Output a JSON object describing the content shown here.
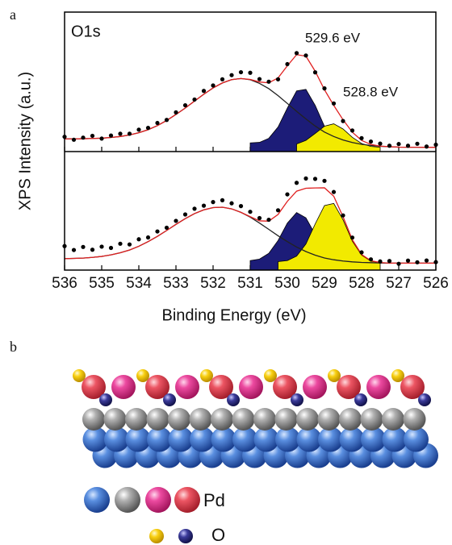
{
  "panel_labels": [
    "a",
    "b"
  ],
  "chart_data": {
    "type": "line",
    "xlabel": "Binding Energy (eV)",
    "ylabel": "XPS Intensity (a.u.)",
    "xlim": [
      536,
      526
    ],
    "xticks": [
      536,
      535,
      534,
      533,
      532,
      531,
      530,
      529,
      528,
      527,
      526
    ],
    "x": [
      536,
      535.75,
      535.5,
      535.25,
      535,
      534.75,
      534.5,
      534.25,
      534,
      533.75,
      533.5,
      533.25,
      533,
      532.75,
      532.5,
      532.25,
      532,
      531.75,
      531.5,
      531.25,
      531,
      530.75,
      530.5,
      530.25,
      530,
      529.75,
      529.5,
      529.25,
      529,
      528.75,
      528.5,
      528.25,
      528,
      527.75,
      527.5,
      527.25,
      527,
      526.75,
      526.5,
      526.25,
      526
    ],
    "panels": [
      {
        "ylim": [
          0,
          100
        ],
        "annotations": [
          "O1s",
          "529.6 eV",
          "528.8 eV"
        ],
        "series": [
          {
            "type": "area",
            "color": "#1c1c78",
            "values": [
              null,
              null,
              null,
              null,
              null,
              null,
              null,
              null,
              null,
              null,
              null,
              null,
              null,
              null,
              null,
              null,
              null,
              null,
              null,
              null,
              6.2,
              6.6,
              9.5,
              17.6,
              31.2,
              43.5,
              44.6,
              33.1,
              18.1,
              8.4,
              4.3,
              3.2,
              null,
              null,
              null,
              null,
              null,
              null,
              null,
              null,
              null
            ]
          },
          {
            "type": "area",
            "color": "#f2ea00",
            "values": [
              null,
              null,
              null,
              null,
              null,
              null,
              null,
              null,
              null,
              null,
              null,
              null,
              null,
              null,
              null,
              null,
              null,
              null,
              null,
              null,
              null,
              null,
              null,
              null,
              null,
              5.4,
              8.0,
              13.0,
              18.2,
              19.9,
              16.2,
              10.2,
              5.8,
              3.7,
              3.1,
              null,
              null,
              null,
              null,
              null,
              null
            ]
          },
          {
            "type": "line",
            "color": "#222222",
            "values": [
              9.1,
              9.1,
              9.2,
              9.4,
              9.6,
              10.1,
              10.8,
              11.9,
              13.5,
              15.7,
              18.6,
              22.3,
              26.6,
              31.2,
              36.2,
              41.1,
              45.6,
              49.2,
              51.6,
              52.4,
              51.5,
              48.9,
              45.1,
              40.1,
              34.5,
              28.8,
              23.4,
              18.3,
              14.0,
              10.8,
              8.3,
              6.5,
              5.2,
              4.4,
              3.8,
              3.5,
              3.2,
              3.1,
              3.1,
              3.0,
              3.0
            ]
          },
          {
            "type": "line",
            "color": "#e02020",
            "values": [
              9.1,
              9.1,
              9.2,
              9.4,
              9.6,
              10.1,
              10.8,
              11.9,
              13.5,
              15.7,
              18.6,
              22.3,
              26.6,
              31.2,
              36.2,
              41.1,
              45.6,
              49.2,
              51.6,
              52.4,
              51.7,
              49.9,
              49.3,
              52.8,
              61.5,
              69.5,
              68.4,
              57.6,
              44.3,
              33.1,
              22.8,
              13.9,
              8.0,
              5.1,
              3.9,
              3.5,
              3.2,
              3.1,
              3.1,
              3.0,
              3.0
            ]
          },
          {
            "type": "scatter",
            "color": "#000000",
            "values": [
              10.6,
              8.5,
              10.0,
              11.3,
              9.3,
              11.5,
              12.8,
              12.8,
              15.7,
              17.0,
              20.5,
              22.7,
              28.1,
              33.2,
              37.3,
              43.5,
              47.4,
              51.8,
              54.8,
              56.9,
              56.5,
              52.0,
              50.1,
              51.8,
              62.7,
              70.6,
              68.9,
              56.8,
              45.3,
              34.5,
              21.9,
              15.1,
              9.6,
              7.2,
              5.7,
              4.2,
              5.4,
              4.2,
              5.6,
              3.6,
              4.9
            ]
          }
        ]
      },
      {
        "ylim": [
          0,
          85
        ],
        "series": [
          {
            "type": "area",
            "color": "#1c1c78",
            "values": [
              null,
              null,
              null,
              null,
              null,
              null,
              null,
              null,
              null,
              null,
              null,
              null,
              null,
              null,
              null,
              null,
              null,
              null,
              null,
              null,
              6.8,
              7.9,
              12.0,
              21.2,
              33.7,
              41.3,
              37.5,
              25.5,
              14.0,
              7.8,
              5.6,
              5.1,
              null,
              null,
              null,
              null,
              null,
              null,
              null,
              null,
              null
            ]
          },
          {
            "type": "area",
            "color": "#f2ea00",
            "values": [
              null,
              null,
              null,
              null,
              null,
              null,
              null,
              null,
              null,
              null,
              null,
              null,
              null,
              null,
              null,
              null,
              null,
              null,
              null,
              null,
              null,
              null,
              null,
              6.1,
              6.8,
              10.0,
              18.7,
              33.1,
              46.3,
              47.8,
              36.1,
              20.8,
              10.7,
              6.4,
              5.3,
              null,
              null,
              null,
              null,
              null,
              null
            ]
          },
          {
            "type": "line",
            "color": "#222222",
            "values": [
              8.2,
              8.4,
              8.6,
              9.1,
              9.8,
              10.9,
              12.4,
              14.4,
              17.1,
              20.4,
              24.2,
              28.4,
              32.8,
              36.9,
              40.5,
              43.2,
              44.8,
              45.1,
              43.9,
              41.4,
              38.0,
              33.7,
              29.2,
              24.6,
              20.4,
              16.5,
              13.3,
              10.7,
              8.7,
              7.4,
              6.5,
              5.9,
              5.5,
              5.3,
              5.1,
              5.0,
              5.0,
              5.0,
              5.0,
              5.0,
              5.0
            ]
          },
          {
            "type": "line",
            "color": "#e02020",
            "values": [
              8.2,
              8.4,
              8.6,
              9.1,
              9.8,
              10.9,
              12.4,
              14.4,
              17.1,
              20.4,
              24.2,
              28.4,
              32.8,
              36.9,
              40.5,
              43.2,
              44.8,
              45.1,
              43.9,
              41.4,
              38.3,
              35.3,
              35.1,
              39.9,
              49.3,
              56.6,
              58.7,
              58.9,
              59.0,
              53.0,
              38.2,
              21.8,
              11.2,
              6.7,
              5.4,
              5.0,
              5.0,
              5.0,
              5.0,
              5.0,
              5.0
            ]
          },
          {
            "type": "scatter",
            "color": "#000000",
            "values": [
              17.2,
              14.4,
              16.6,
              14.6,
              16.8,
              15.9,
              18.9,
              18.4,
              22.1,
              23.4,
              27.7,
              30.4,
              35.3,
              39.9,
              44.0,
              46.2,
              48.8,
              50.1,
              47.9,
              45.9,
              41.8,
              37.3,
              36.1,
              42.9,
              54.3,
              62.6,
              65.7,
              65.4,
              64.0,
              56.0,
              39.2,
              23.3,
              12.7,
              7.7,
              6.2,
              6.5,
              4.5,
              6.8,
              5.6,
              6.9,
              5.7
            ]
          }
        ]
      }
    ]
  },
  "model": {
    "legend_labels": [
      "Pd",
      "O"
    ]
  }
}
